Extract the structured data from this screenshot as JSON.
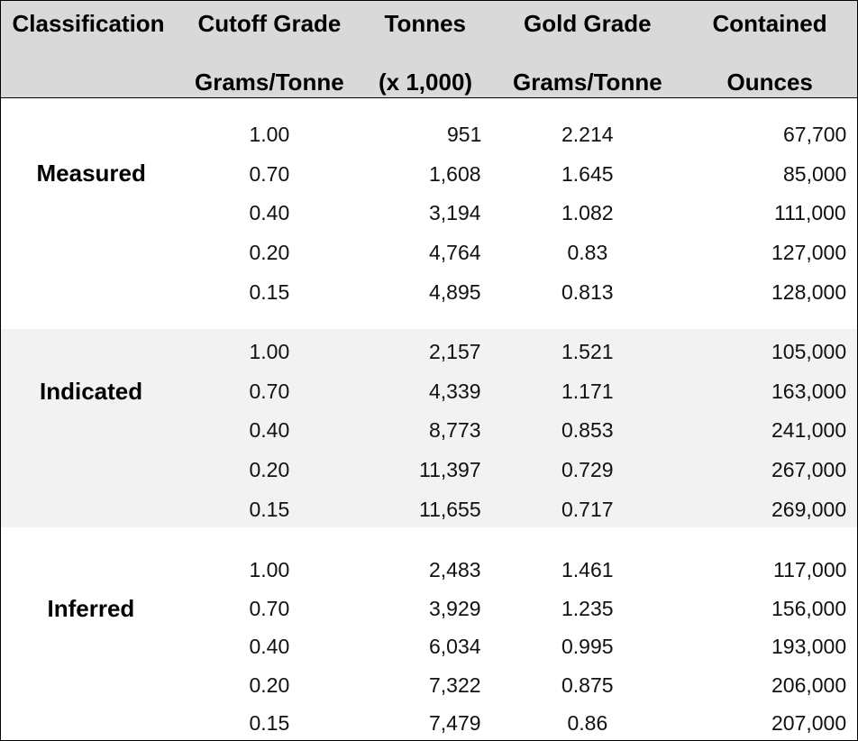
{
  "header": {
    "columns": [
      {
        "line1": "Classification"
      },
      {
        "line1": "Cutoff Grade",
        "line2": "Grams/Tonne"
      },
      {
        "line1": "Tonnes",
        "line2": "(x 1,000)"
      },
      {
        "line1": "Gold Grade",
        "line2": "Grams/Tonne"
      },
      {
        "line1": "Contained",
        "line2": "Ounces"
      }
    ]
  },
  "groups": [
    {
      "classification": "Measured",
      "rows": [
        [
          "1.00",
          "951",
          "2.214",
          "67,700"
        ],
        [
          "0.70",
          "1,608",
          "1.645",
          "85,000"
        ],
        [
          "0.40",
          "3,194",
          "1.082",
          "111,000"
        ],
        [
          "0.20",
          "4,764",
          "0.83",
          "127,000"
        ],
        [
          "0.15",
          "4,895",
          "0.813",
          "128,000"
        ]
      ]
    },
    {
      "classification": "Indicated",
      "rows": [
        [
          "1.00",
          "2,157",
          "1.521",
          "105,000"
        ],
        [
          "0.70",
          "4,339",
          "1.171",
          "163,000"
        ],
        [
          "0.40",
          "8,773",
          "0.853",
          "241,000"
        ],
        [
          "0.20",
          "11,397",
          "0.729",
          "267,000"
        ],
        [
          "0.15",
          "11,655",
          "0.717",
          "269,000"
        ]
      ]
    },
    {
      "classification": "Inferred",
      "rows": [
        [
          "1.00",
          "2,483",
          "1.461",
          "117,000"
        ],
        [
          "0.70",
          "3,929",
          "1.235",
          "156,000"
        ],
        [
          "0.40",
          "6,034",
          "0.995",
          "193,000"
        ],
        [
          "0.20",
          "7,322",
          "0.875",
          "206,000"
        ],
        [
          "0.15",
          "7,479",
          "0.86",
          "207,000"
        ]
      ]
    }
  ]
}
